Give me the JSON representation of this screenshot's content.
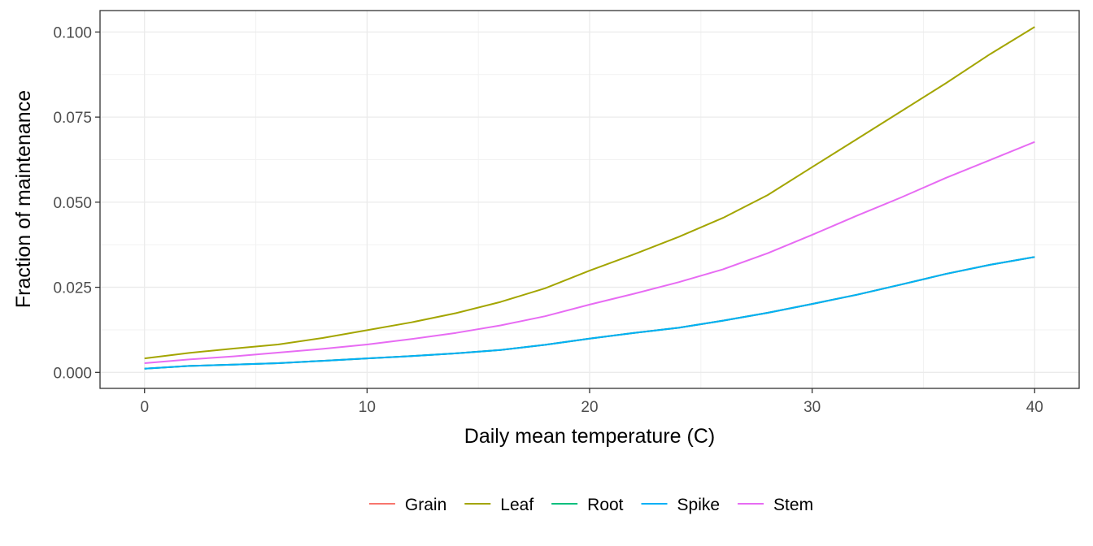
{
  "chart_data": {
    "type": "line",
    "xlabel": "Daily mean temperature (C)",
    "ylabel": "Fraction of maintenance",
    "xlim": [
      -2,
      42
    ],
    "ylim": [
      -0.0047,
      0.1063
    ],
    "x_ticks": [
      0,
      10,
      20,
      30,
      40
    ],
    "y_ticks": [
      0.0,
      0.025,
      0.05,
      0.075,
      0.1
    ],
    "y_tick_labels": [
      "0.000",
      "0.025",
      "0.050",
      "0.075",
      "0.100"
    ],
    "grid": true,
    "legend_position": "bottom",
    "x": [
      0,
      2,
      4,
      6,
      8,
      10,
      12,
      14,
      16,
      18,
      20,
      22,
      24,
      26,
      28,
      30,
      32,
      34,
      36,
      38,
      40
    ],
    "series": [
      {
        "name": "Grain",
        "color": "#F8766D",
        "values": [
          0.0011,
          0.0019,
          0.0023,
          0.0027,
          0.0034,
          0.0041,
          0.0048,
          0.0056,
          0.0066,
          0.0081,
          0.0099,
          0.0116,
          0.0131,
          0.0152,
          0.0175,
          0.0201,
          0.0228,
          0.0258,
          0.0289,
          0.0316,
          0.0339
        ]
      },
      {
        "name": "Leaf",
        "color": "#A3A500",
        "values": [
          0.0041,
          0.0057,
          0.007,
          0.0082,
          0.0101,
          0.0124,
          0.0147,
          0.0174,
          0.0207,
          0.0247,
          0.0299,
          0.0347,
          0.0398,
          0.0454,
          0.0521,
          0.0603,
          0.0685,
          0.0767,
          0.0849,
          0.0935,
          0.1015
        ]
      },
      {
        "name": "Root",
        "color": "#00BF7D",
        "values": [
          0.0011,
          0.0019,
          0.0023,
          0.0027,
          0.0034,
          0.0041,
          0.0048,
          0.0056,
          0.0066,
          0.0081,
          0.0099,
          0.0116,
          0.0131,
          0.0152,
          0.0175,
          0.0201,
          0.0228,
          0.0258,
          0.0289,
          0.0316,
          0.0339
        ]
      },
      {
        "name": "Spike",
        "color": "#00B0F6",
        "values": [
          0.0011,
          0.0019,
          0.0023,
          0.0027,
          0.0034,
          0.0041,
          0.0048,
          0.0056,
          0.0066,
          0.0081,
          0.0099,
          0.0116,
          0.0131,
          0.0152,
          0.0175,
          0.0201,
          0.0228,
          0.0258,
          0.0289,
          0.0316,
          0.0339
        ]
      },
      {
        "name": "Stem",
        "color": "#E76BF3",
        "values": [
          0.0027,
          0.0038,
          0.0047,
          0.0058,
          0.0069,
          0.0082,
          0.0098,
          0.0116,
          0.0138,
          0.0165,
          0.0199,
          0.0231,
          0.0265,
          0.0303,
          0.035,
          0.0404,
          0.046,
          0.0514,
          0.0571,
          0.0624,
          0.0677
        ]
      }
    ]
  }
}
